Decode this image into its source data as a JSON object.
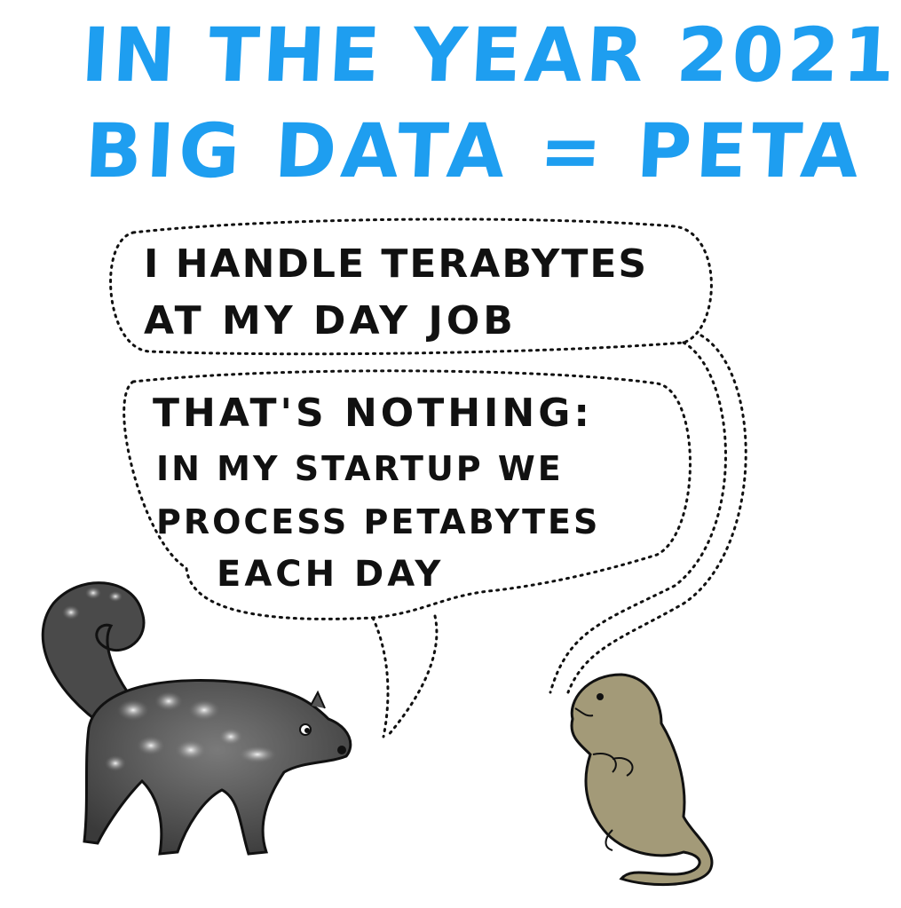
{
  "title": {
    "line1": "IN THE YEAR 2021",
    "line2": "BIG DATA = PETA"
  },
  "speech_top": {
    "line1": "I HANDLE TERABYTES",
    "line2": "AT MY DAY JOB"
  },
  "speech_bottom": {
    "line1": "THAT'S NOTHING:",
    "line2": "IN MY STARTUP WE",
    "line3": "PROCESS PETABYTES",
    "line4": "EACH DAY"
  },
  "colors": {
    "title": "#1e9ef0",
    "text": "#111111",
    "skunk": "#5a5a5a",
    "marmot": "#a39a78"
  }
}
